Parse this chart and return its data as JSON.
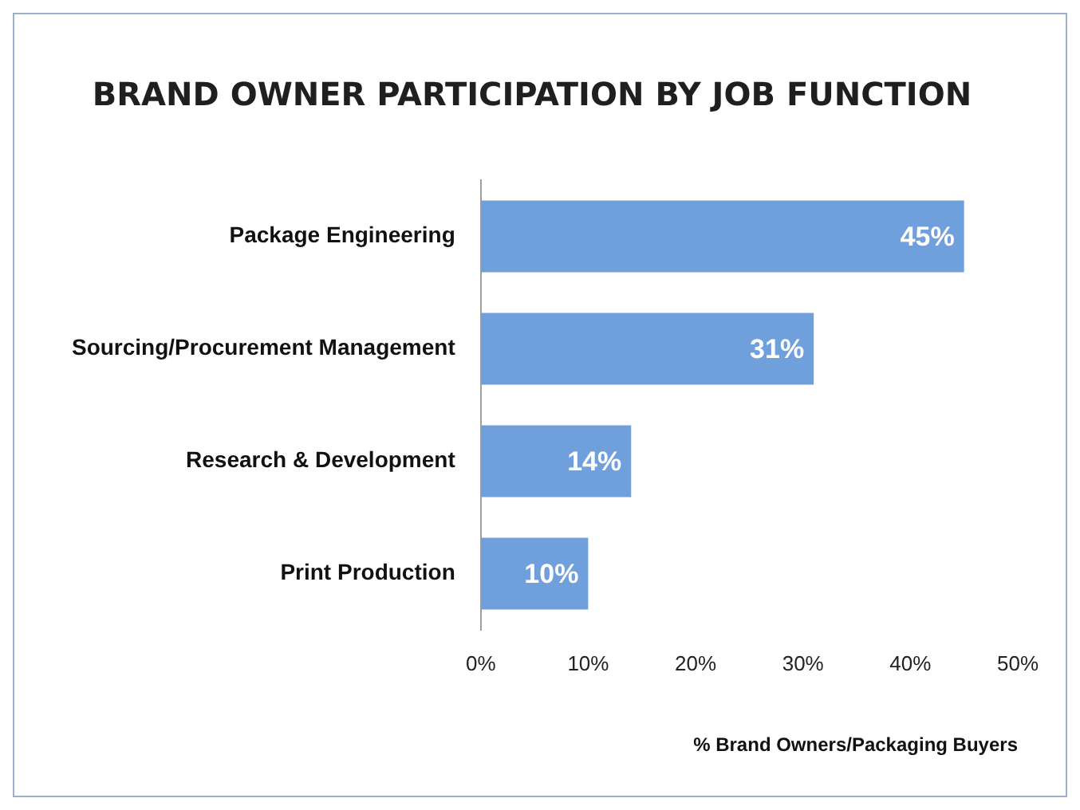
{
  "chart_data": {
    "type": "bar",
    "orientation": "horizontal",
    "title": "BRAND OWNER PARTICIPATION BY JOB FUNCTION",
    "xlabel": "% Brand Owners/Packaging Buyers",
    "categories": [
      "Package Engineering",
      "Sourcing/Procurement Management",
      "Research & Development",
      "Print Production"
    ],
    "values": [
      45,
      31,
      14,
      10
    ],
    "color": "#70a0dc",
    "value_labels": [
      "45%",
      "31%",
      "14%",
      "10%"
    ],
    "xlim": [
      0,
      50
    ],
    "xticks": [
      {
        "value": 0,
        "label": "0%"
      },
      {
        "value": 10,
        "label": "10%"
      },
      {
        "value": 20,
        "label": "20%"
      },
      {
        "value": 30,
        "label": "30%"
      },
      {
        "value": 40,
        "label": "40%"
      },
      {
        "value": 50,
        "label": "50%"
      }
    ],
    "grid": false,
    "legend": false
  }
}
